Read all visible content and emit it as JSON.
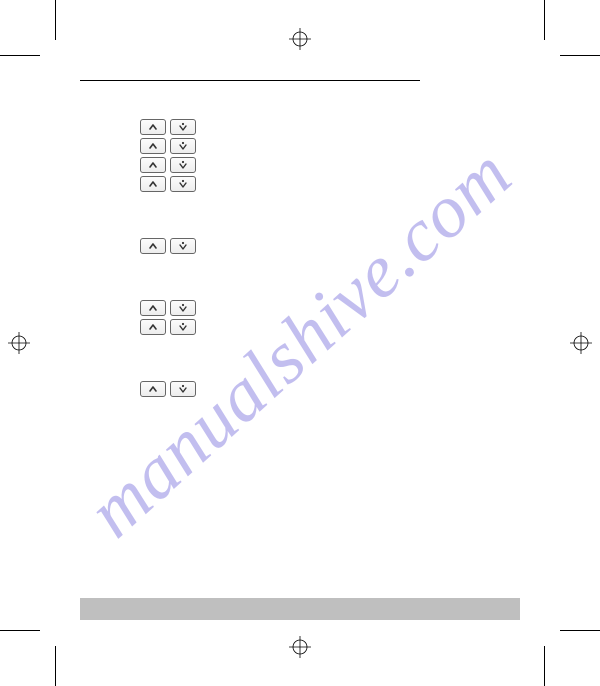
{
  "watermark": {
    "text": "manualshive.com",
    "color": "rgba(120,110,220,0.45)"
  },
  "buttons": {
    "up_glyph": "^",
    "down_glyph": "ᵛ"
  },
  "groups": [
    {
      "rows": 4
    },
    {
      "rows": 1
    },
    {
      "rows": 2
    },
    {
      "rows": 1
    }
  ],
  "colors": {
    "crop": "#000000",
    "bottom_bar": "#bfbfbf",
    "btn_border": "#666666"
  }
}
